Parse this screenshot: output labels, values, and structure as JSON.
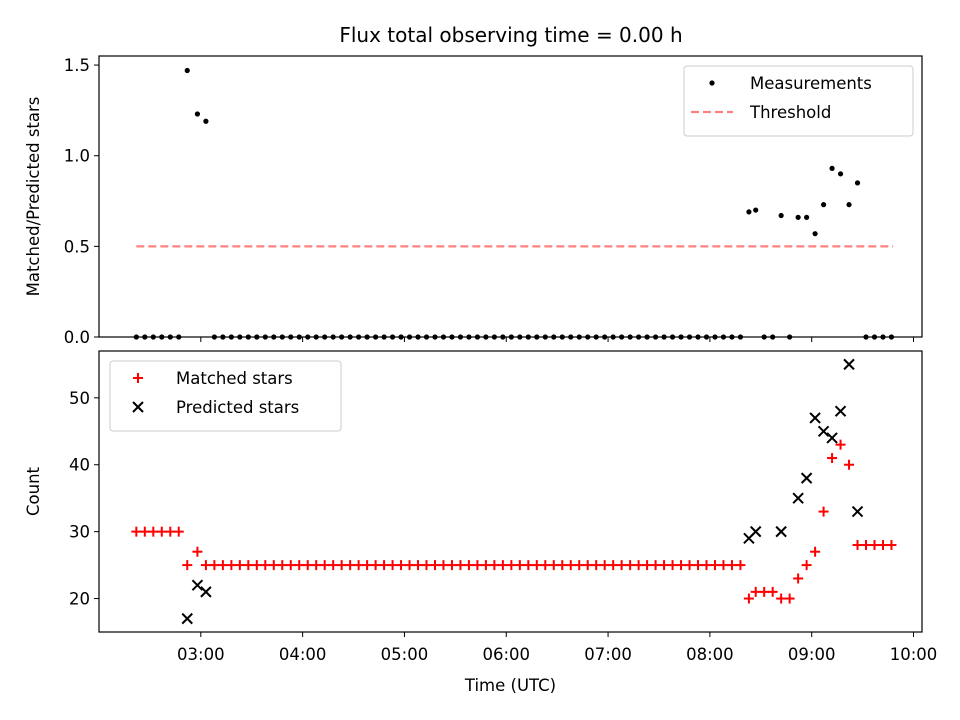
{
  "chart_data": [
    {
      "type": "scatter",
      "title": "Flux total observing time = 0.00 h",
      "xlabel": "",
      "ylabel": "Matched/Predicted stars",
      "ylim": [
        0,
        1.55
      ],
      "yticks": [
        0,
        0.5,
        1.0,
        1.5
      ],
      "yticklabels": [
        "0.0",
        "0.5",
        "1.0",
        "1.5"
      ],
      "xlim": [
        "02:00",
        "10:05"
      ],
      "xticks": [
        "03:00",
        "04:00",
        "05:00",
        "06:00",
        "07:00",
        "08:00",
        "09:00",
        "10:00"
      ],
      "show_xticklabels": false,
      "legend_position": "upper right",
      "legend": [
        {
          "label": "Measurements",
          "marker": "dot",
          "color": "#000000"
        },
        {
          "label": "Threshold",
          "marker": "dashed-line",
          "color": "#ff8080"
        }
      ],
      "series": [
        {
          "name": "Measurements",
          "kind": "scatter",
          "color": "#000000",
          "points": [
            [
              "02:22",
              0
            ],
            [
              "02:27",
              0
            ],
            [
              "02:32",
              0
            ],
            [
              "02:37",
              0
            ],
            [
              "02:42",
              0
            ],
            [
              "02:47",
              0
            ],
            [
              "02:52",
              1.47
            ],
            [
              "02:58",
              1.23
            ],
            [
              "03:03",
              1.19
            ],
            [
              "03:08",
              0
            ],
            [
              "03:13",
              0
            ],
            [
              "03:18",
              0
            ],
            [
              "03:23",
              0
            ],
            [
              "03:28",
              0
            ],
            [
              "03:33",
              0
            ],
            [
              "03:38",
              0
            ],
            [
              "03:43",
              0
            ],
            [
              "03:48",
              0
            ],
            [
              "03:53",
              0
            ],
            [
              "03:58",
              0
            ],
            [
              "04:03",
              0
            ],
            [
              "04:08",
              0
            ],
            [
              "04:13",
              0
            ],
            [
              "04:18",
              0
            ],
            [
              "04:23",
              0
            ],
            [
              "04:28",
              0
            ],
            [
              "04:33",
              0
            ],
            [
              "04:38",
              0
            ],
            [
              "04:43",
              0
            ],
            [
              "04:48",
              0
            ],
            [
              "04:53",
              0
            ],
            [
              "04:58",
              0
            ],
            [
              "05:03",
              0
            ],
            [
              "05:08",
              0
            ],
            [
              "05:13",
              0
            ],
            [
              "05:18",
              0
            ],
            [
              "05:23",
              0
            ],
            [
              "05:28",
              0
            ],
            [
              "05:33",
              0
            ],
            [
              "05:38",
              0
            ],
            [
              "05:43",
              0
            ],
            [
              "05:48",
              0
            ],
            [
              "05:53",
              0
            ],
            [
              "05:58",
              0
            ],
            [
              "06:03",
              0
            ],
            [
              "06:08",
              0
            ],
            [
              "06:13",
              0
            ],
            [
              "06:18",
              0
            ],
            [
              "06:23",
              0
            ],
            [
              "06:28",
              0
            ],
            [
              "06:33",
              0
            ],
            [
              "06:38",
              0
            ],
            [
              "06:43",
              0
            ],
            [
              "06:48",
              0
            ],
            [
              "06:53",
              0
            ],
            [
              "06:58",
              0
            ],
            [
              "07:03",
              0
            ],
            [
              "07:08",
              0
            ],
            [
              "07:13",
              0
            ],
            [
              "07:18",
              0
            ],
            [
              "07:23",
              0
            ],
            [
              "07:28",
              0
            ],
            [
              "07:33",
              0
            ],
            [
              "07:38",
              0
            ],
            [
              "07:43",
              0
            ],
            [
              "07:48",
              0
            ],
            [
              "07:53",
              0
            ],
            [
              "07:58",
              0
            ],
            [
              "08:03",
              0
            ],
            [
              "08:08",
              0
            ],
            [
              "08:13",
              0
            ],
            [
              "08:18",
              0
            ],
            [
              "08:23",
              0.69
            ],
            [
              "08:27",
              0.7
            ],
            [
              "08:32",
              0
            ],
            [
              "08:37",
              0
            ],
            [
              "08:42",
              0.67
            ],
            [
              "08:47",
              0
            ],
            [
              "08:52",
              0.66
            ],
            [
              "08:57",
              0.66
            ],
            [
              "09:02",
              0.57
            ],
            [
              "09:07",
              0.73
            ],
            [
              "09:12",
              0.93
            ],
            [
              "09:17",
              0.9
            ],
            [
              "09:22",
              0.73
            ],
            [
              "09:27",
              0.85
            ],
            [
              "09:32",
              0
            ],
            [
              "09:37",
              0
            ],
            [
              "09:42",
              0
            ],
            [
              "09:47",
              0
            ]
          ]
        },
        {
          "name": "Threshold",
          "kind": "dashed-line",
          "color": "#ff8080",
          "points": [
            [
              "02:22",
              0.5
            ],
            [
              "09:48",
              0.5
            ]
          ]
        }
      ]
    },
    {
      "type": "scatter",
      "title": "",
      "xlabel": "Time (UTC)",
      "ylabel": "Count",
      "ylim": [
        15,
        57
      ],
      "yticks": [
        20,
        30,
        40,
        50
      ],
      "yticklabels": [
        "20",
        "30",
        "40",
        "50"
      ],
      "xlim": [
        "02:00",
        "10:05"
      ],
      "xticks": [
        "03:00",
        "04:00",
        "05:00",
        "06:00",
        "07:00",
        "08:00",
        "09:00",
        "10:00"
      ],
      "show_xticklabels": true,
      "legend_position": "upper left",
      "legend": [
        {
          "label": "Matched stars",
          "marker": "plus",
          "color": "#ff0000"
        },
        {
          "label": "Predicted stars",
          "marker": "x",
          "color": "#000000"
        }
      ],
      "series": [
        {
          "name": "Matched stars",
          "kind": "scatter",
          "marker": "plus",
          "color": "#ff0000",
          "points": [
            [
              "02:22",
              30
            ],
            [
              "02:27",
              30
            ],
            [
              "02:32",
              30
            ],
            [
              "02:37",
              30
            ],
            [
              "02:42",
              30
            ],
            [
              "02:47",
              30
            ],
            [
              "02:52",
              25
            ],
            [
              "02:58",
              27
            ],
            [
              "03:03",
              25
            ],
            [
              "03:08",
              25
            ],
            [
              "03:13",
              25
            ],
            [
              "03:18",
              25
            ],
            [
              "03:23",
              25
            ],
            [
              "03:28",
              25
            ],
            [
              "03:33",
              25
            ],
            [
              "03:38",
              25
            ],
            [
              "03:43",
              25
            ],
            [
              "03:48",
              25
            ],
            [
              "03:53",
              25
            ],
            [
              "03:58",
              25
            ],
            [
              "04:03",
              25
            ],
            [
              "04:08",
              25
            ],
            [
              "04:13",
              25
            ],
            [
              "04:18",
              25
            ],
            [
              "04:23",
              25
            ],
            [
              "04:28",
              25
            ],
            [
              "04:33",
              25
            ],
            [
              "04:38",
              25
            ],
            [
              "04:43",
              25
            ],
            [
              "04:48",
              25
            ],
            [
              "04:53",
              25
            ],
            [
              "04:58",
              25
            ],
            [
              "05:03",
              25
            ],
            [
              "05:08",
              25
            ],
            [
              "05:13",
              25
            ],
            [
              "05:18",
              25
            ],
            [
              "05:23",
              25
            ],
            [
              "05:28",
              25
            ],
            [
              "05:33",
              25
            ],
            [
              "05:38",
              25
            ],
            [
              "05:43",
              25
            ],
            [
              "05:48",
              25
            ],
            [
              "05:53",
              25
            ],
            [
              "05:58",
              25
            ],
            [
              "06:03",
              25
            ],
            [
              "06:08",
              25
            ],
            [
              "06:13",
              25
            ],
            [
              "06:18",
              25
            ],
            [
              "06:23",
              25
            ],
            [
              "06:28",
              25
            ],
            [
              "06:33",
              25
            ],
            [
              "06:38",
              25
            ],
            [
              "06:43",
              25
            ],
            [
              "06:48",
              25
            ],
            [
              "06:53",
              25
            ],
            [
              "06:58",
              25
            ],
            [
              "07:03",
              25
            ],
            [
              "07:08",
              25
            ],
            [
              "07:13",
              25
            ],
            [
              "07:18",
              25
            ],
            [
              "07:23",
              25
            ],
            [
              "07:28",
              25
            ],
            [
              "07:33",
              25
            ],
            [
              "07:38",
              25
            ],
            [
              "07:43",
              25
            ],
            [
              "07:48",
              25
            ],
            [
              "07:53",
              25
            ],
            [
              "07:58",
              25
            ],
            [
              "08:03",
              25
            ],
            [
              "08:08",
              25
            ],
            [
              "08:13",
              25
            ],
            [
              "08:18",
              25
            ],
            [
              "08:23",
              20
            ],
            [
              "08:27",
              21
            ],
            [
              "08:32",
              21
            ],
            [
              "08:37",
              21
            ],
            [
              "08:42",
              20
            ],
            [
              "08:47",
              20
            ],
            [
              "08:52",
              23
            ],
            [
              "08:57",
              25
            ],
            [
              "09:02",
              27
            ],
            [
              "09:07",
              33
            ],
            [
              "09:12",
              41
            ],
            [
              "09:17",
              43
            ],
            [
              "09:22",
              40
            ],
            [
              "09:27",
              28
            ],
            [
              "09:32",
              28
            ],
            [
              "09:37",
              28
            ],
            [
              "09:42",
              28
            ],
            [
              "09:47",
              28
            ]
          ]
        },
        {
          "name": "Predicted stars",
          "kind": "scatter",
          "marker": "x",
          "color": "#000000",
          "points": [
            [
              "02:52",
              17
            ],
            [
              "02:58",
              22
            ],
            [
              "03:03",
              21
            ],
            [
              "08:23",
              29
            ],
            [
              "08:27",
              30
            ],
            [
              "08:42",
              30
            ],
            [
              "08:52",
              35
            ],
            [
              "08:57",
              38
            ],
            [
              "09:02",
              47
            ],
            [
              "09:07",
              45
            ],
            [
              "09:12",
              44
            ],
            [
              "09:17",
              48
            ],
            [
              "09:22",
              55
            ],
            [
              "09:27",
              33
            ]
          ]
        }
      ]
    }
  ]
}
